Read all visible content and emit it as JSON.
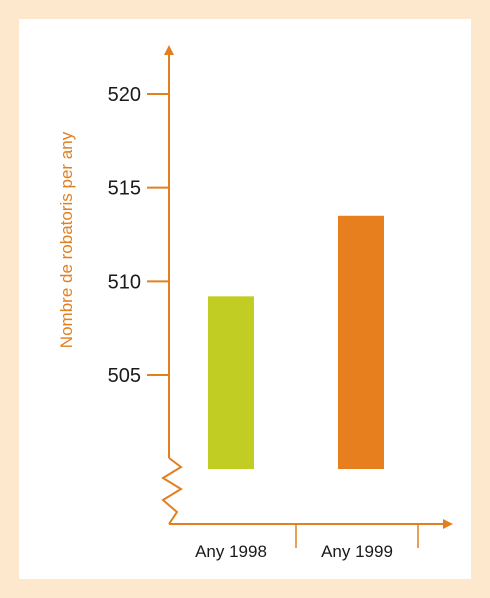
{
  "colors": {
    "background": "#fde7cd",
    "axis": "#e27f1f",
    "bar_1998": "#c2cd23",
    "bar_1999": "#e87f1e"
  },
  "chart_data": {
    "type": "bar",
    "title": "",
    "xlabel": "",
    "ylabel": "Nombre de robatoris per any",
    "categories": [
      "Any 1998",
      "Any 1999"
    ],
    "values": [
      509.2,
      513.5
    ],
    "yticks": [
      505,
      510,
      515,
      520
    ],
    "ytick_labels": [
      "505",
      "510",
      "515",
      "520"
    ],
    "ylim": [
      500,
      522
    ],
    "y_axis_break": true,
    "grid": false,
    "legend": "none"
  }
}
